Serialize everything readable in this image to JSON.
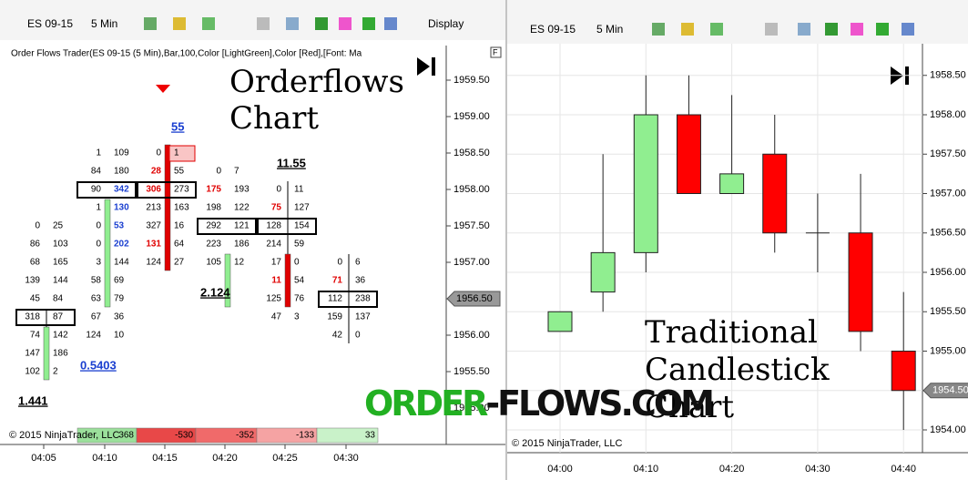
{
  "left_toolbar": {
    "instrument": "ES 09-15",
    "interval": "5 Min",
    "display": "Display"
  },
  "right_toolbar": {
    "instrument": "ES 09-15",
    "interval": "5 Min"
  },
  "orderflow": {
    "header": "Order Flows Trader(ES 09-15 (5 Min),Bar,100,Color [LightGreen],Color [Red],[Font: Ma",
    "panel_button": "F",
    "overlay_title": [
      "Orderflows",
      "Chart"
    ],
    "price_ticks": [
      {
        "value": 1959.5,
        "label": "1959.50"
      },
      {
        "value": 1959,
        "label": "1959.00"
      },
      {
        "value": 1958.5,
        "label": "1958.50"
      },
      {
        "value": 1958,
        "label": "1958.00"
      },
      {
        "value": 1957.5,
        "label": "1957.50"
      },
      {
        "value": 1957,
        "label": "1957.00"
      },
      {
        "value": 1956.5,
        "label": "1956.50"
      },
      {
        "value": 1956,
        "label": "1956.00"
      },
      {
        "value": 1955.5,
        "label": "1955.50"
      },
      {
        "value": 1955,
        "label": "1955.00"
      }
    ],
    "current_price": {
      "value": 1956.5,
      "label": "1956.50"
    },
    "time_labels": [
      "04:05",
      "04:10",
      "04:15",
      "04:20",
      "04:25",
      "04:30"
    ],
    "bars": [
      {
        "open": 1955.5,
        "close": 1956,
        "high": 1956.25,
        "color": "#90ee90",
        "rows": [
          {
            "price": 1957.5,
            "bid": 0,
            "ask": 25
          },
          {
            "price": 1957.25,
            "bid": 86,
            "ask": 103
          },
          {
            "price": 1957,
            "bid": 68,
            "ask": 165
          },
          {
            "price": 1956.75,
            "bid": 139,
            "ask": 144
          },
          {
            "price": 1956.5,
            "bid": 45,
            "ask": 84
          },
          {
            "price": 1956.25,
            "bid": 318,
            "ask": 87,
            "boxed": true
          },
          {
            "price": 1956,
            "bid": 74,
            "ask": 142
          },
          {
            "price": 1955.75,
            "bid": 147,
            "ask": 186
          },
          {
            "price": 1955.5,
            "bid": 102,
            "ask": 2
          }
        ]
      },
      {
        "open": 1956.5,
        "close": 1957.75,
        "high": 1957.75,
        "color": "#90ee90",
        "rows": [
          {
            "price": 1958.5,
            "bid": 1,
            "ask": 109
          },
          {
            "price": 1958.25,
            "bid": 84,
            "ask": 180
          },
          {
            "price": 1958,
            "bid": 90,
            "ask": 342,
            "boxed": true,
            "ask_color": "#1a3fd0"
          },
          {
            "price": 1957.75,
            "bid": 1,
            "ask": 130,
            "ask_color": "#1a3fd0"
          },
          {
            "price": 1957.5,
            "bid": 0,
            "ask": 53,
            "ask_color": "#1a3fd0"
          },
          {
            "price": 1957.25,
            "bid": 0,
            "ask": 202,
            "ask_color": "#1a3fd0"
          },
          {
            "price": 1957,
            "bid": 3,
            "ask": 144
          },
          {
            "price": 1956.75,
            "bid": 58,
            "ask": 69
          },
          {
            "price": 1956.5,
            "bid": 63,
            "ask": 79
          },
          {
            "price": 1956.25,
            "bid": 67,
            "ask": 36
          },
          {
            "price": 1956,
            "bid": 124,
            "ask": 10
          }
        ]
      },
      {
        "open": 1958.5,
        "close": 1957,
        "high": 1958.5,
        "color": "#e00000",
        "rows": [
          {
            "price": 1958.5,
            "bid": 0,
            "ask": 1,
            "ask_box": "#e00000"
          },
          {
            "price": 1958.25,
            "bid": 28,
            "ask": 55,
            "bid_color": "#e00000"
          },
          {
            "price": 1958,
            "bid": 306,
            "ask": 273,
            "boxed": true,
            "bid_color": "#e00000"
          },
          {
            "price": 1957.75,
            "bid": 213,
            "ask": 163
          },
          {
            "price": 1957.5,
            "bid": 327,
            "ask": 16
          },
          {
            "price": 1957.25,
            "bid": 131,
            "ask": 64,
            "bid_color": "#e00000"
          },
          {
            "price": 1957,
            "bid": 124,
            "ask": 27
          }
        ]
      },
      {
        "open": 1956.5,
        "close": 1957,
        "high": 1957,
        "color": "#90ee90",
        "rows": [
          {
            "price": 1958.25,
            "bid": 0,
            "ask": 7
          },
          {
            "price": 1958,
            "bid": 175,
            "ask": 193,
            "bid_color": "#e00000"
          },
          {
            "price": 1957.75,
            "bid": 198,
            "ask": 122
          },
          {
            "price": 1957.5,
            "bid": 292,
            "ask": 121,
            "boxed": true
          },
          {
            "price": 1957.25,
            "bid": 223,
            "ask": 186
          },
          {
            "price": 1957,
            "bid": 105,
            "ask": 12
          }
        ]
      },
      {
        "open": 1957,
        "close": 1956.5,
        "high": 1958,
        "color": "#e00000",
        "rows": [
          {
            "price": 1958,
            "bid": 0,
            "ask": 11
          },
          {
            "price": 1957.75,
            "bid": 75,
            "ask": 127,
            "bid_color": "#e00000"
          },
          {
            "price": 1957.5,
            "bid": 128,
            "ask": 154,
            "boxed": true
          },
          {
            "price": 1957.25,
            "bid": 214,
            "ask": 59
          },
          {
            "price": 1957,
            "bid": 17,
            "ask": 0
          },
          {
            "price": 1956.75,
            "bid": 11,
            "ask": 54,
            "bid_color": "#e00000"
          },
          {
            "price": 1956.5,
            "bid": 125,
            "ask": 76
          },
          {
            "price": 1956.25,
            "bid": 47,
            "ask": 3
          }
        ]
      },
      {
        "rows": [
          {
            "price": 1957,
            "bid": 0,
            "ask": 6
          },
          {
            "price": 1956.75,
            "bid": 71,
            "ask": 36,
            "bid_color": "#e00000"
          },
          {
            "price": 1956.5,
            "bid": 112,
            "ask": 238,
            "boxed": true
          },
          {
            "price": 1956.25,
            "bid": 159,
            "ask": 137
          },
          {
            "price": 1956,
            "bid": 42,
            "ask": 0
          }
        ]
      }
    ],
    "annotations": [
      {
        "text": "55",
        "color": "#1a3fd0"
      },
      {
        "text": "11.55",
        "color": "#000"
      },
      {
        "text": "2.124",
        "color": "#000"
      },
      {
        "text": "0.5403",
        "color": "#1a3fd0"
      },
      {
        "text": "1.441",
        "color": "#000"
      }
    ],
    "delta": [
      {
        "value": 368,
        "color": "#9be09b"
      },
      {
        "value": -530,
        "color": "#e84848"
      },
      {
        "value": -352,
        "color": "#f06a6a"
      },
      {
        "value": -133,
        "color": "#f5a3a3"
      },
      {
        "value": 33,
        "color": "#c9f2c9"
      }
    ],
    "copyright": "© 2015 NinjaTrader, LLC"
  },
  "candles": {
    "overlay_title": [
      "Traditional",
      "Candlestick",
      "Chart"
    ],
    "price_ticks": [
      {
        "value": 1958.5,
        "label": "1958.50"
      },
      {
        "value": 1958,
        "label": "1958.00"
      },
      {
        "value": 1957.5,
        "label": "1957.50"
      },
      {
        "value": 1957,
        "label": "1957.00"
      },
      {
        "value": 1956.5,
        "label": "1956.50"
      },
      {
        "value": 1956,
        "label": "1956.00"
      },
      {
        "value": 1955.5,
        "label": "1955.50"
      },
      {
        "value": 1955,
        "label": "1955.00"
      },
      {
        "value": 1954.5,
        "label": "1954.50"
      },
      {
        "value": 1954,
        "label": "1954.00"
      }
    ],
    "current_price": {
      "value": 1954.5,
      "label": "1954.50"
    },
    "time_labels": [
      "04:00",
      "04:10",
      "04:20",
      "04:30",
      "04:40"
    ],
    "up_color": "#90ee90",
    "down_color": "#ff0000",
    "series": [
      {
        "open": 1955.25,
        "high": 1955.5,
        "low": 1955.25,
        "close": 1955.5
      },
      {
        "open": 1955.75,
        "high": 1957.5,
        "low": 1955.5,
        "close": 1956.25
      },
      {
        "open": 1956.25,
        "high": 1958.5,
        "low": 1956,
        "close": 1958
      },
      {
        "open": 1958,
        "high": 1958.5,
        "low": 1957,
        "close": 1957
      },
      {
        "open": 1957,
        "high": 1958.25,
        "low": 1957,
        "close": 1957.25
      },
      {
        "open": 1957.5,
        "high": 1958,
        "low": 1956.25,
        "close": 1956.5
      },
      {
        "open": 1956.5,
        "high": 1957,
        "low": 1956,
        "close": 1956.5
      },
      {
        "open": 1956.5,
        "high": 1957.25,
        "low": 1955,
        "close": 1955.25
      },
      {
        "open": 1955,
        "high": 1955.75,
        "low": 1954,
        "close": 1954.5
      }
    ],
    "copyright": "© 2015 NinjaTrader, LLC"
  },
  "watermark": {
    "part1": "ORDER",
    "part2": "-FLOWS.COM"
  }
}
